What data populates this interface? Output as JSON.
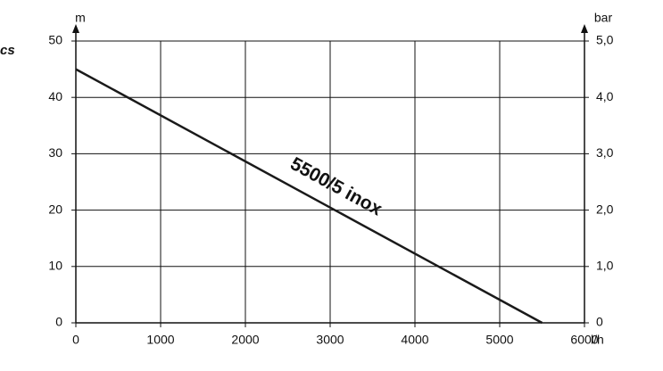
{
  "chart_data": {
    "type": "line",
    "title": "cs",
    "x_label": "l/h",
    "y_label": "m",
    "y2_label": "bar",
    "xlim": [
      0,
      6000
    ],
    "xticks": [
      0,
      1000,
      2000,
      3000,
      4000,
      5000,
      6000
    ],
    "ylim": [
      0,
      50
    ],
    "yticks": [
      0,
      10,
      20,
      30,
      40,
      50
    ],
    "y2lim": [
      0,
      5
    ],
    "y2ticks": [
      0,
      {
        "value": 1,
        "label": "1,0"
      },
      {
        "value": 2,
        "label": "2,0"
      },
      {
        "value": 3,
        "label": "3,0"
      },
      {
        "value": 4,
        "label": "4,0"
      },
      {
        "value": 5,
        "label": "5,0"
      }
    ],
    "grid": true,
    "x": [
      0,
      5500
    ],
    "series": [
      {
        "name": "5500/5 inox",
        "color": "#1a1a1a",
        "values": [
          45,
          0
        ]
      }
    ]
  }
}
